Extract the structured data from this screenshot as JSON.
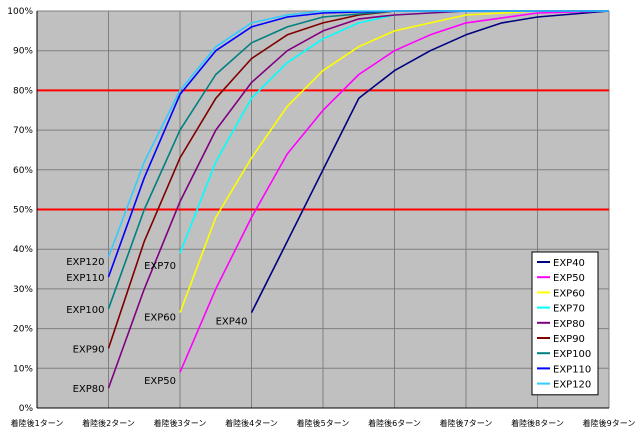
{
  "chart_data": {
    "type": "line",
    "title": "",
    "xlabel": "",
    "ylabel": "",
    "categories": [
      "着陸後1ターン",
      "着陸後2ターン",
      "着陸後3ターン",
      "着陸後4ターン",
      "着陸後5ターン",
      "着陸後6ターン",
      "着陸後7ターン",
      "着陸後8ターン",
      "着陸後9ターン"
    ],
    "ylim": [
      0,
      100
    ],
    "yticks": [
      "0%",
      "10%",
      "20%",
      "30%",
      "40%",
      "50%",
      "60%",
      "70%",
      "80%",
      "90%",
      "100%"
    ],
    "grid": true,
    "background": "#c0c0c0",
    "reference_lines": [
      {
        "y": 80,
        "color": "#ff0000"
      },
      {
        "y": 50,
        "color": "#ff0000"
      }
    ],
    "legend_position": "bottom-right",
    "series": [
      {
        "name": "EXP40",
        "color": "#000080",
        "points": [
          [
            4,
            24
          ],
          [
            4.5,
            42
          ],
          [
            5,
            60
          ],
          [
            5.5,
            78
          ],
          [
            6,
            85
          ],
          [
            6.5,
            90
          ],
          [
            7,
            94
          ],
          [
            7.5,
            97
          ],
          [
            8,
            98.5
          ],
          [
            9,
            100
          ]
        ]
      },
      {
        "name": "EXP50",
        "color": "#ff00ff",
        "points": [
          [
            3,
            9
          ],
          [
            3.5,
            30
          ],
          [
            4,
            48
          ],
          [
            4.5,
            64
          ],
          [
            5,
            75
          ],
          [
            5.5,
            84
          ],
          [
            6,
            90
          ],
          [
            6.5,
            94
          ],
          [
            7,
            97
          ],
          [
            8,
            99.5
          ],
          [
            9,
            100
          ]
        ]
      },
      {
        "name": "EXP60",
        "color": "#ffff00",
        "points": [
          [
            3,
            24
          ],
          [
            3.5,
            48
          ],
          [
            4,
            63
          ],
          [
            4.5,
            76
          ],
          [
            5,
            85
          ],
          [
            5.5,
            91
          ],
          [
            6,
            95
          ],
          [
            6.5,
            97
          ],
          [
            7,
            99
          ],
          [
            8,
            100
          ],
          [
            9,
            100
          ]
        ]
      },
      {
        "name": "EXP70",
        "color": "#00ffff",
        "points": [
          [
            3,
            39
          ],
          [
            3.5,
            62
          ],
          [
            4,
            78
          ],
          [
            4.5,
            87
          ],
          [
            5,
            93
          ],
          [
            5.5,
            97
          ],
          [
            6,
            99
          ],
          [
            7,
            100
          ],
          [
            9,
            100
          ]
        ]
      },
      {
        "name": "EXP80",
        "color": "#800080",
        "points": [
          [
            2,
            5
          ],
          [
            2.5,
            30
          ],
          [
            3,
            52
          ],
          [
            3.5,
            70
          ],
          [
            4,
            82
          ],
          [
            4.5,
            90
          ],
          [
            5,
            95
          ],
          [
            5.5,
            98
          ],
          [
            6,
            99
          ],
          [
            7,
            100
          ],
          [
            9,
            100
          ]
        ]
      },
      {
        "name": "EXP90",
        "color": "#800000",
        "points": [
          [
            2,
            15
          ],
          [
            2.5,
            42
          ],
          [
            3,
            63
          ],
          [
            3.5,
            78
          ],
          [
            4,
            88
          ],
          [
            4.5,
            94
          ],
          [
            5,
            97
          ],
          [
            5.5,
            99
          ],
          [
            6,
            100
          ],
          [
            9,
            100
          ]
        ]
      },
      {
        "name": "EXP100",
        "color": "#008080",
        "points": [
          [
            2,
            25
          ],
          [
            2.5,
            50
          ],
          [
            3,
            70
          ],
          [
            3.5,
            84
          ],
          [
            4,
            92
          ],
          [
            4.5,
            96
          ],
          [
            5,
            98.5
          ],
          [
            6,
            100
          ],
          [
            9,
            100
          ]
        ]
      },
      {
        "name": "EXP110",
        "color": "#0000ff",
        "points": [
          [
            2,
            33
          ],
          [
            2.5,
            58
          ],
          [
            3,
            79
          ],
          [
            3.5,
            90
          ],
          [
            4,
            96
          ],
          [
            4.5,
            98.5
          ],
          [
            5,
            99.5
          ],
          [
            6,
            100
          ],
          [
            9,
            100
          ]
        ]
      },
      {
        "name": "EXP120",
        "color": "#33ccff",
        "points": [
          [
            2,
            38
          ],
          [
            2.5,
            62
          ],
          [
            3,
            80
          ],
          [
            3.5,
            91
          ],
          [
            4,
            97
          ],
          [
            4.5,
            99
          ],
          [
            5,
            100
          ],
          [
            9,
            100
          ]
        ]
      }
    ],
    "annotations": [
      {
        "text": "EXP120",
        "x": 2,
        "y": 37
      },
      {
        "text": "EXP110",
        "x": 2,
        "y": 33
      },
      {
        "text": "EXP100",
        "x": 2,
        "y": 25
      },
      {
        "text": "EXP90",
        "x": 2,
        "y": 15
      },
      {
        "text": "EXP80",
        "x": 2,
        "y": 5
      },
      {
        "text": "EXP70",
        "x": 3,
        "y": 36
      },
      {
        "text": "EXP60",
        "x": 3,
        "y": 23
      },
      {
        "text": "EXP50",
        "x": 3,
        "y": 7
      },
      {
        "text": "EXP40",
        "x": 4,
        "y": 22
      }
    ]
  }
}
